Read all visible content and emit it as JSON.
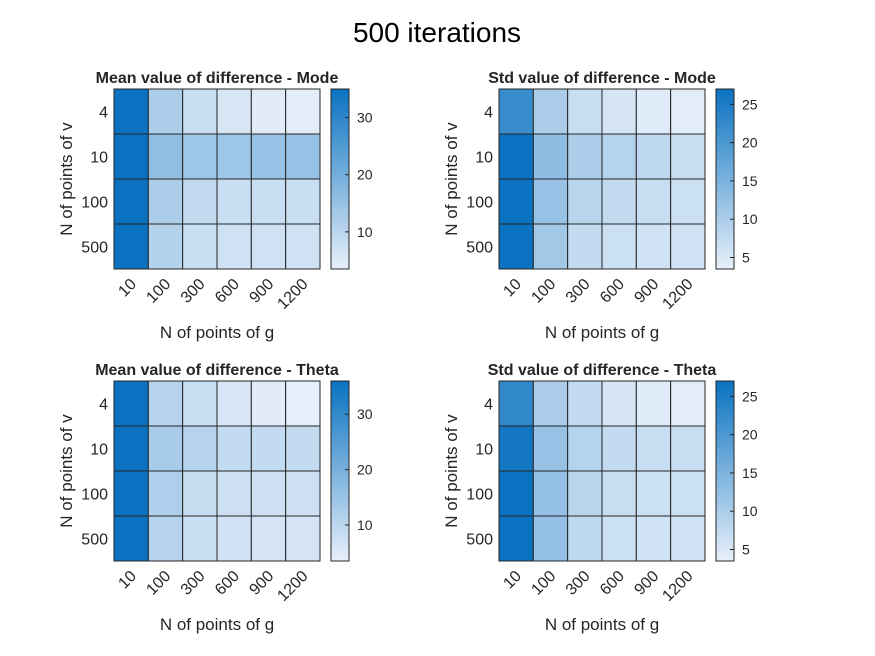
{
  "figure_title": "500 iterations",
  "colors": {
    "low": "#e8f0fa",
    "high": "#0a72c0",
    "grid": "#262626"
  },
  "chart_data": [
    {
      "type": "heatmap",
      "title": "Mean value of difference - Mode",
      "xlabel": "N of points of g",
      "ylabel": "N of points of v",
      "x_categories": [
        "10",
        "100",
        "300",
        "600",
        "900",
        "1200"
      ],
      "y_categories": [
        "4",
        "10",
        "100",
        "500"
      ],
      "values": [
        [
          35,
          12,
          8,
          6,
          4.5,
          4
        ],
        [
          35,
          16,
          14,
          14,
          15,
          15
        ],
        [
          35,
          12,
          9,
          8,
          8,
          8
        ],
        [
          35,
          11,
          8,
          7,
          7,
          7
        ]
      ],
      "clim": [
        3.5,
        35
      ],
      "colorbar_ticks": [
        10,
        20,
        30
      ]
    },
    {
      "type": "heatmap",
      "title": "Std value of difference - Mode",
      "xlabel": "N of points of g",
      "ylabel": "N of points of v",
      "x_categories": [
        "10",
        "100",
        "300",
        "600",
        "900",
        "1200"
      ],
      "y_categories": [
        "4",
        "10",
        "100",
        "500"
      ],
      "values": [
        [
          22,
          10,
          7,
          5.5,
          4.5,
          4
        ],
        [
          27,
          13,
          10,
          9,
          8,
          7
        ],
        [
          27,
          12,
          8.5,
          7.5,
          7,
          6.5
        ],
        [
          27,
          11,
          7.5,
          6.5,
          6,
          6
        ]
      ],
      "clim": [
        3.5,
        27
      ],
      "colorbar_ticks": [
        5,
        10,
        15,
        20,
        25
      ]
    },
    {
      "type": "heatmap",
      "title": "Mean value of difference - Theta",
      "xlabel": "N of points of g",
      "ylabel": "N of points of v",
      "x_categories": [
        "10",
        "100",
        "300",
        "600",
        "900",
        "1200"
      ],
      "y_categories": [
        "4",
        "10",
        "100",
        "500"
      ],
      "values": [
        [
          36,
          11,
          8,
          6,
          4.5,
          4
        ],
        [
          36,
          13,
          11,
          9,
          9,
          9
        ],
        [
          36,
          12,
          8.5,
          7.5,
          7.5,
          7.5
        ],
        [
          36,
          11,
          8,
          7,
          6.5,
          6.5
        ]
      ],
      "clim": [
        3.5,
        36
      ],
      "colorbar_ticks": [
        10,
        20,
        30
      ]
    },
    {
      "type": "heatmap",
      "title": "Std value of difference - Theta",
      "xlabel": "N of points of g",
      "ylabel": "N of points of v",
      "x_categories": [
        "10",
        "100",
        "300",
        "600",
        "900",
        "1200"
      ],
      "y_categories": [
        "4",
        "10",
        "100",
        "500"
      ],
      "values": [
        [
          23,
          10,
          7.5,
          5.5,
          4.5,
          4
        ],
        [
          26,
          12,
          9,
          7.5,
          7,
          7
        ],
        [
          27,
          12.5,
          8.5,
          7,
          6.5,
          6.5
        ],
        [
          27,
          12.5,
          8,
          6.5,
          6,
          6
        ]
      ],
      "clim": [
        3.5,
        27
      ],
      "colorbar_ticks": [
        5,
        10,
        15,
        20,
        25
      ]
    }
  ]
}
